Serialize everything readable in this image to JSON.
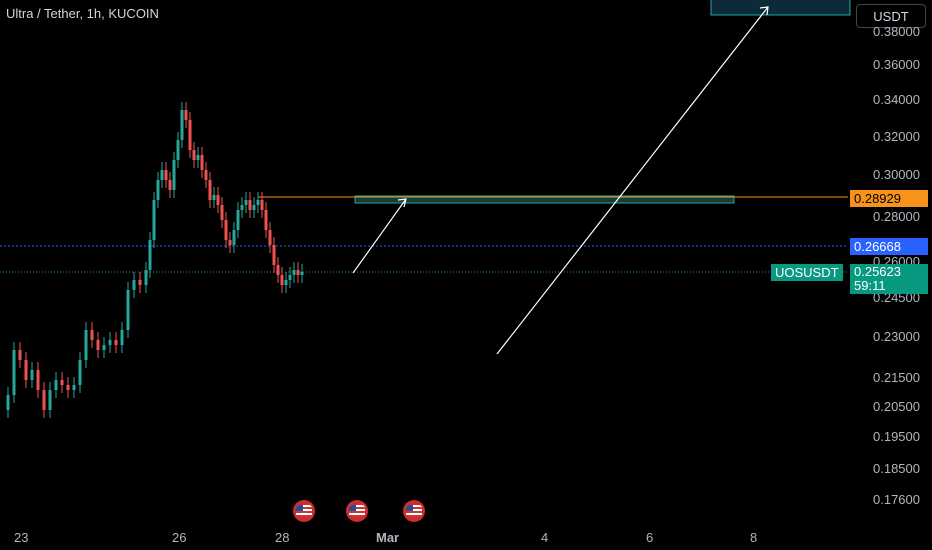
{
  "header": {
    "title": "Ultra / Tether, 1h, KUCOIN",
    "currency_button": "USDT"
  },
  "price_axis": {
    "labels": [
      "0.38000",
      "0.36000",
      "0.34000",
      "0.32000",
      "0.30000",
      "0.28000",
      "0.26000",
      "0.24500",
      "0.23000",
      "0.21500",
      "0.20500",
      "0.19500",
      "0.18500",
      "0.17600"
    ]
  },
  "time_axis": {
    "labels": [
      "23",
      "26",
      "28",
      "Mar",
      "4",
      "6",
      "8"
    ]
  },
  "tags": {
    "resistance_price": "0.28929",
    "blue_line_price": "0.26668",
    "symbol": "UOSUSDT",
    "last_price": "0.25623",
    "countdown": "59:11"
  },
  "colors": {
    "up": "#26a69a",
    "down": "#ef5350",
    "orange": "#f7931a",
    "blue": "#2962ff",
    "green_tag": "#089981",
    "background": "#000000"
  },
  "events": {
    "icon": "us-flag-icon",
    "count": 3
  }
}
